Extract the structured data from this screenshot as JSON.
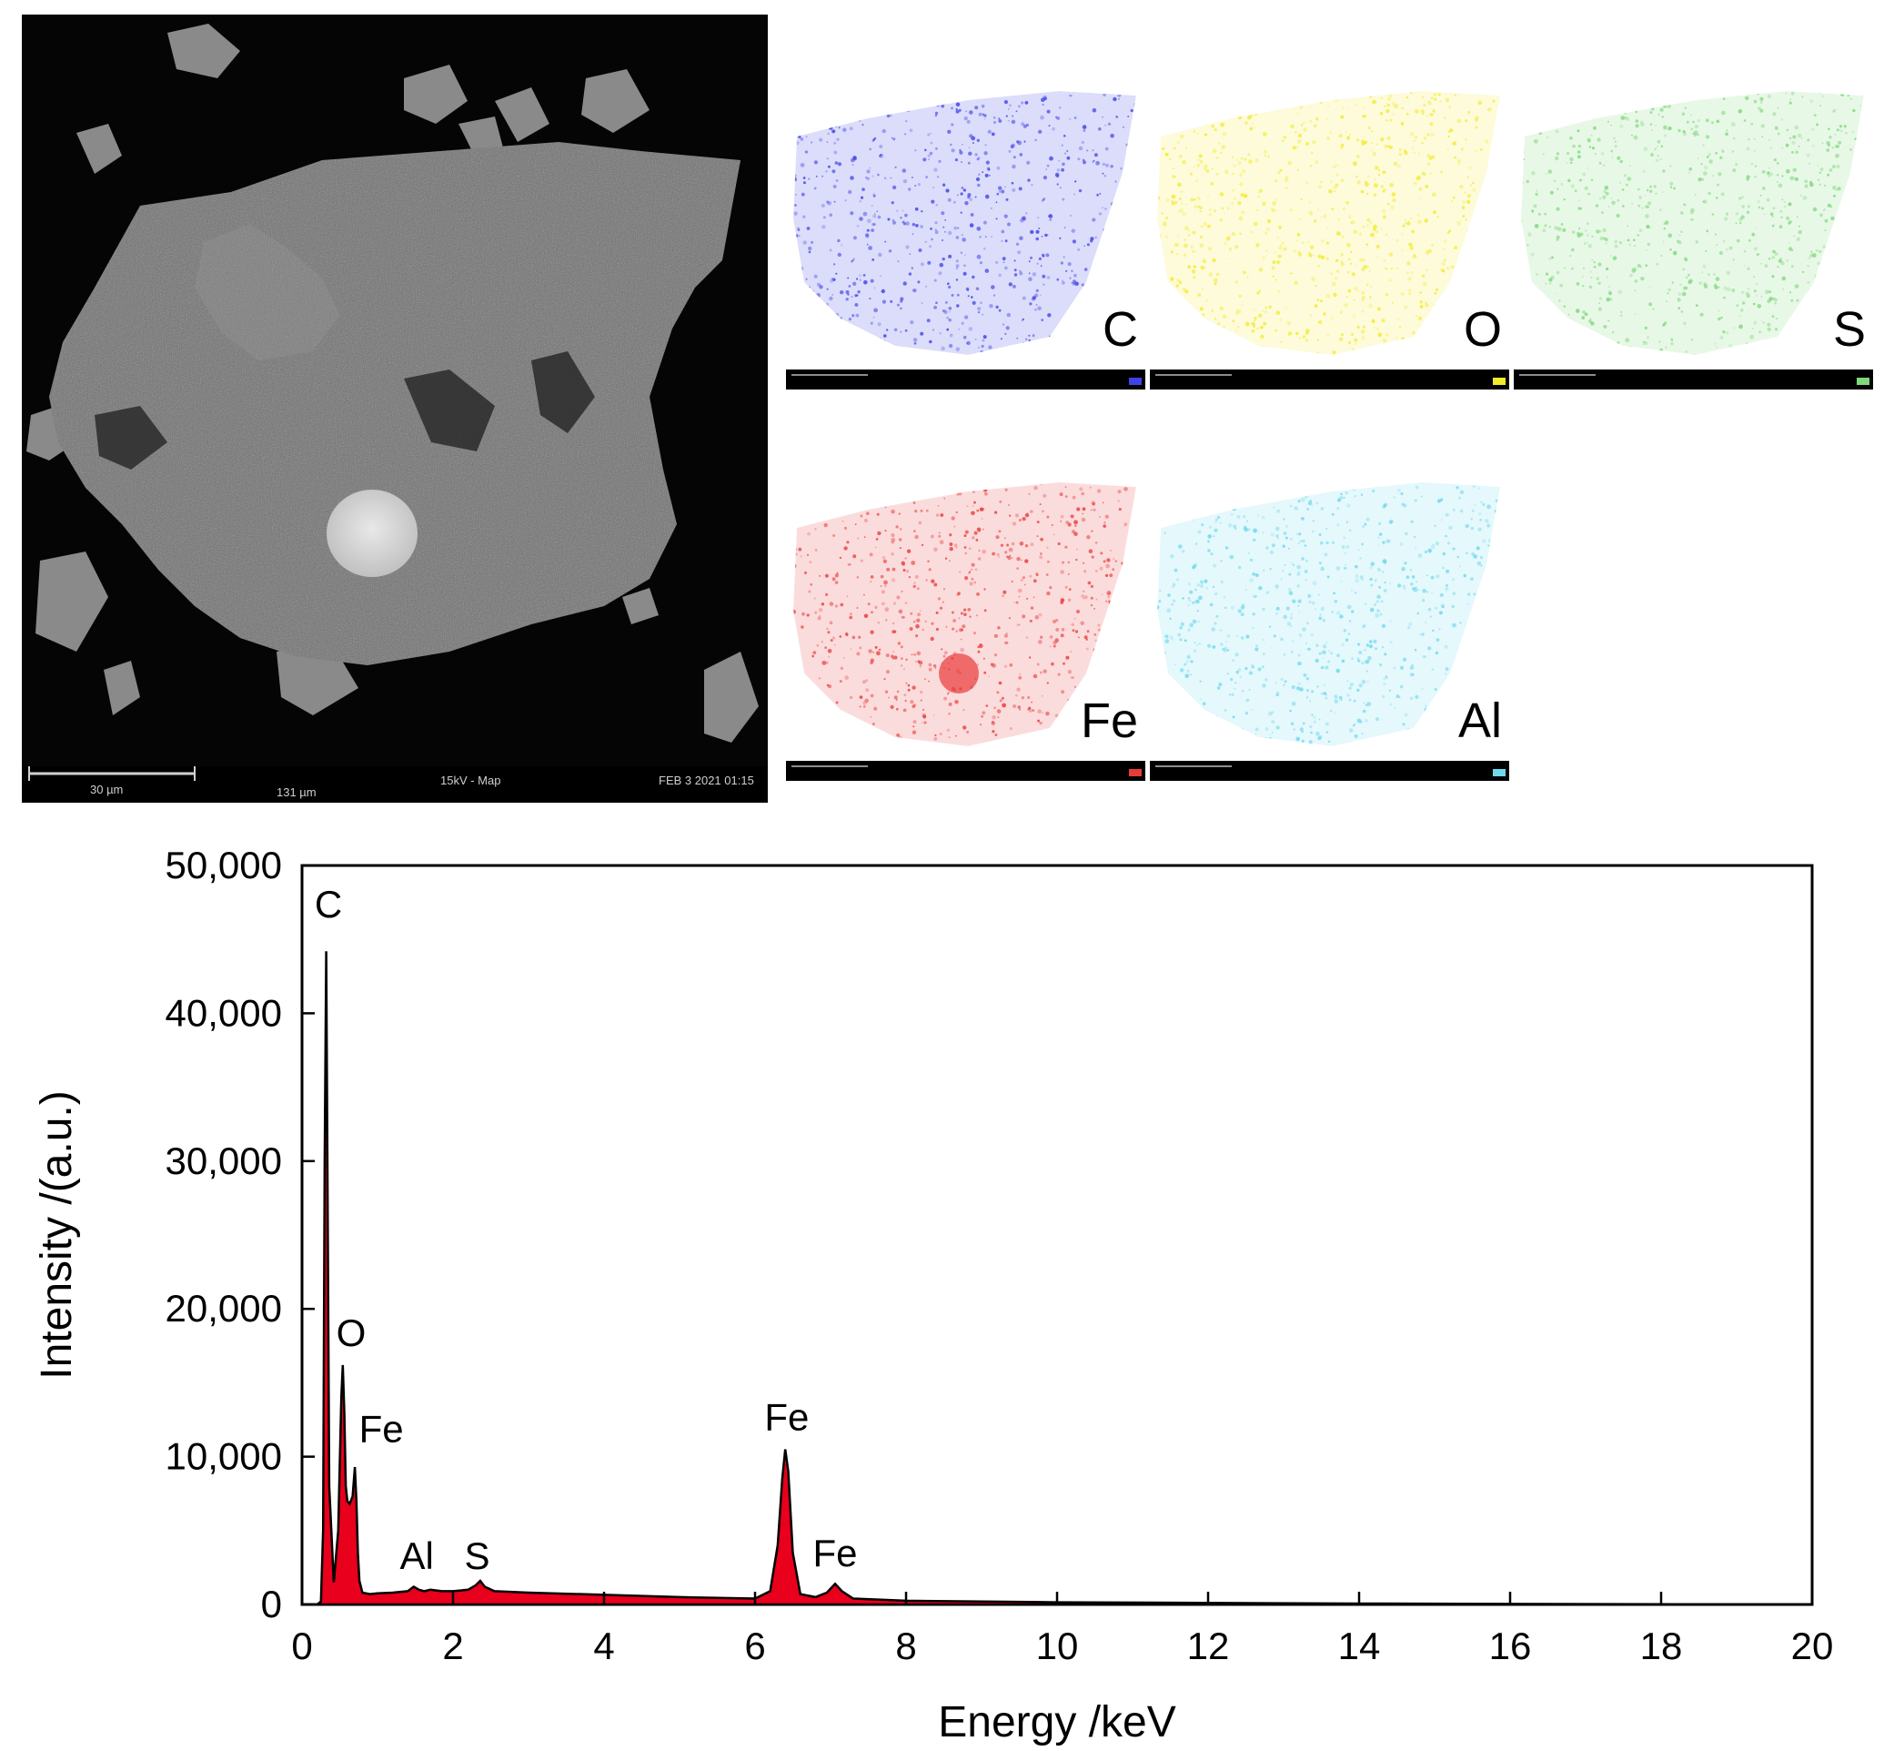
{
  "sem": {
    "scale_bar": "30 µm",
    "field": "131 µm",
    "mode": "15kV - Map",
    "date": "FEB 3 2021 01:15"
  },
  "maps": [
    {
      "element": "C",
      "color": "#3f43e6"
    },
    {
      "element": "O",
      "color": "#f2ea2c"
    },
    {
      "element": "S",
      "color": "#7fd87a"
    },
    {
      "element": "Fe",
      "color": "#ea3b3b"
    },
    {
      "element": "Al",
      "color": "#6fd9ec"
    }
  ],
  "chart_data": {
    "type": "area",
    "xlabel": "Energy /keV",
    "ylabel": "Intensity /(a.u.)",
    "xlim": [
      0,
      20
    ],
    "ylim": [
      0,
      50000
    ],
    "xticks": [
      0,
      2,
      4,
      6,
      8,
      10,
      12,
      14,
      16,
      18,
      20
    ],
    "yticks": [
      0,
      10000,
      20000,
      30000,
      40000,
      50000
    ],
    "ytick_labels": [
      "0",
      "10,000",
      "20,000",
      "30,000",
      "40,000",
      "50,000"
    ],
    "fill_color": "#e8001c",
    "x": [
      0.0,
      0.1,
      0.2,
      0.25,
      0.28,
      0.3,
      0.32,
      0.36,
      0.42,
      0.48,
      0.52,
      0.54,
      0.56,
      0.58,
      0.6,
      0.63,
      0.67,
      0.7,
      0.72,
      0.74,
      0.76,
      0.8,
      0.9,
      1.0,
      1.2,
      1.4,
      1.48,
      1.55,
      1.62,
      1.7,
      1.85,
      2.0,
      2.2,
      2.3,
      2.36,
      2.42,
      2.55,
      3.0,
      4.0,
      5.0,
      6.0,
      6.2,
      6.3,
      6.36,
      6.4,
      6.44,
      6.5,
      6.6,
      6.8,
      6.95,
      7.06,
      7.15,
      7.3,
      8.0,
      10.0,
      14.0,
      20.0
    ],
    "y": [
      0,
      0,
      0,
      200,
      5000,
      30000,
      44200,
      8000,
      1500,
      5000,
      14000,
      16200,
      13000,
      8000,
      7000,
      6800,
      7300,
      9300,
      7000,
      3500,
      1600,
      800,
      700,
      750,
      800,
      900,
      1200,
      1000,
      900,
      1000,
      900,
      900,
      1000,
      1300,
      1600,
      1200,
      900,
      800,
      650,
      500,
      400,
      900,
      4000,
      8500,
      10500,
      9000,
      3500,
      700,
      500,
      800,
      1400,
      900,
      400,
      250,
      150,
      60,
      0
    ],
    "annotations": [
      {
        "text": "C",
        "x": 0.35,
        "y": 46500
      },
      {
        "text": "O",
        "x": 0.65,
        "y": 17500
      },
      {
        "text": "Fe",
        "x": 1.05,
        "y": 11000
      },
      {
        "text": "Al",
        "x": 1.52,
        "y": 2400
      },
      {
        "text": "S",
        "x": 2.32,
        "y": 2400
      },
      {
        "text": "Fe",
        "x": 6.42,
        "y": 11800
      },
      {
        "text": "Fe",
        "x": 7.06,
        "y": 2600
      }
    ]
  }
}
